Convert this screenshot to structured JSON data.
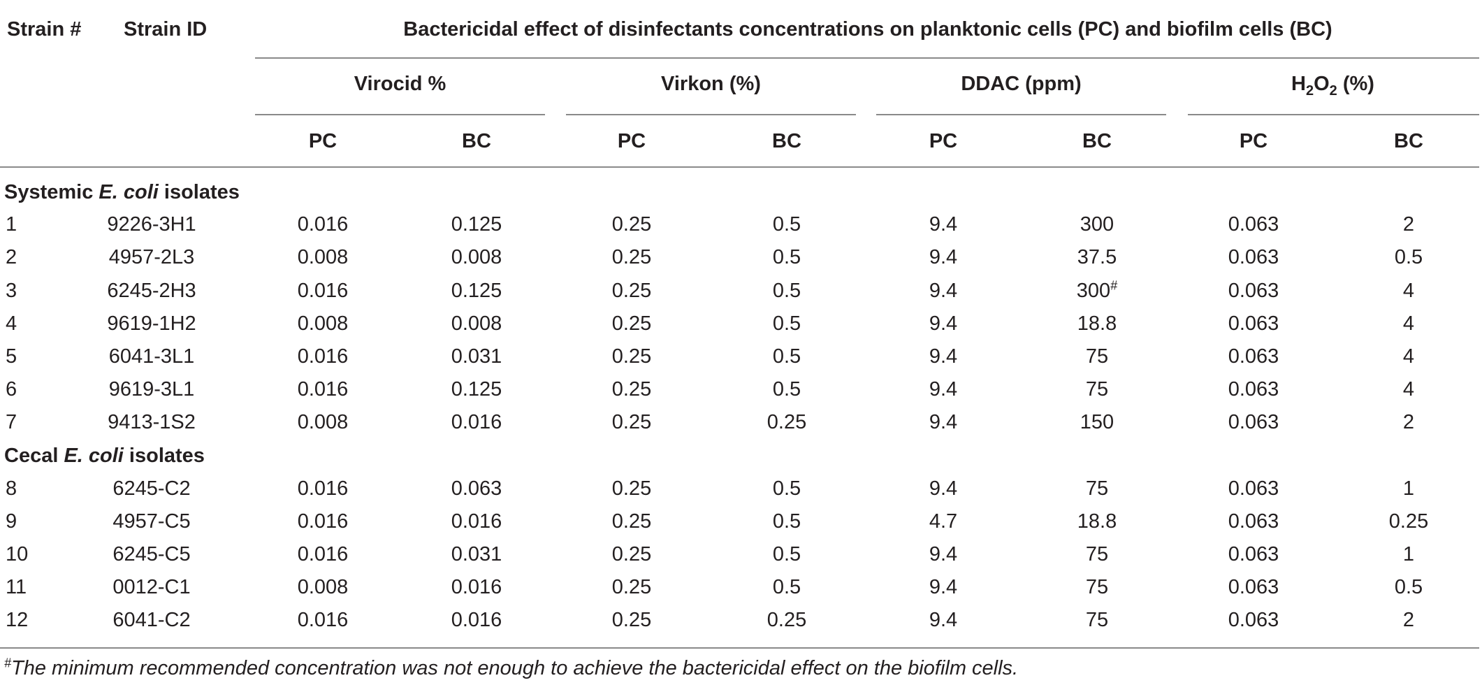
{
  "headers": {
    "strain_num": "Strain #",
    "strain_id": "Strain ID",
    "main": "Bactericidal effect of disinfectants concentrations on planktonic cells (PC) and biofilm cells (BC)",
    "groups": [
      "Virocid %",
      "Virkon (%)",
      "DDAC (ppm)"
    ],
    "h2o2": {
      "h": "H",
      "sub2a": "2",
      "o": "O",
      "sub2b": "2",
      "unit": " (%)"
    },
    "pc": "PC",
    "bc": "BC"
  },
  "sections": [
    {
      "prefix": "Systemic ",
      "species": "E. coli",
      "suffix": " isolates"
    },
    {
      "prefix": "Cecal ",
      "species": "E. coli",
      "suffix": " isolates"
    }
  ],
  "rows": [
    {
      "num": "1",
      "id": "9226-3H1",
      "vals": [
        "0.016",
        "0.125",
        "0.25",
        "0.5",
        "9.4",
        "300",
        "0.063",
        "2"
      ]
    },
    {
      "num": "2",
      "id": "4957-2L3",
      "vals": [
        "0.008",
        "0.008",
        "0.25",
        "0.5",
        "9.4",
        "37.5",
        "0.063",
        "0.5"
      ]
    },
    {
      "num": "3",
      "id": "6245-2H3",
      "vals": [
        "0.016",
        "0.125",
        "0.25",
        "0.5",
        "9.4",
        "300",
        "0.063",
        "4"
      ],
      "mark": "#"
    },
    {
      "num": "4",
      "id": "9619-1H2",
      "vals": [
        "0.008",
        "0.008",
        "0.25",
        "0.5",
        "9.4",
        "18.8",
        "0.063",
        "4"
      ]
    },
    {
      "num": "5",
      "id": "6041-3L1",
      "vals": [
        "0.016",
        "0.031",
        "0.25",
        "0.5",
        "9.4",
        "75",
        "0.063",
        "4"
      ]
    },
    {
      "num": "6",
      "id": "9619-3L1",
      "vals": [
        "0.016",
        "0.125",
        "0.25",
        "0.5",
        "9.4",
        "75",
        "0.063",
        "4"
      ]
    },
    {
      "num": "7",
      "id": "9413-1S2",
      "vals": [
        "0.008",
        "0.016",
        "0.25",
        "0.25",
        "9.4",
        "150",
        "0.063",
        "2"
      ]
    },
    {
      "num": "8",
      "id": "6245-C2",
      "vals": [
        "0.016",
        "0.063",
        "0.25",
        "0.5",
        "9.4",
        "75",
        "0.063",
        "1"
      ]
    },
    {
      "num": "9",
      "id": "4957-C5",
      "vals": [
        "0.016",
        "0.016",
        "0.25",
        "0.5",
        "4.7",
        "18.8",
        "0.063",
        "0.25"
      ]
    },
    {
      "num": "10",
      "id": "6245-C5",
      "vals": [
        "0.016",
        "0.031",
        "0.25",
        "0.5",
        "9.4",
        "75",
        "0.063",
        "1"
      ]
    },
    {
      "num": "11",
      "id": "0012-C1",
      "vals": [
        "0.008",
        "0.016",
        "0.25",
        "0.5",
        "9.4",
        "75",
        "0.063",
        "0.5"
      ]
    },
    {
      "num": "12",
      "id": "6041-C2",
      "vals": [
        "0.016",
        "0.016",
        "0.25",
        "0.25",
        "9.4",
        "75",
        "0.063",
        "2"
      ]
    }
  ],
  "footnote": {
    "mark": "#",
    "text": "The minimum recommended concentration was not enough to achieve the bactericidal effect on the biofilm cells."
  }
}
